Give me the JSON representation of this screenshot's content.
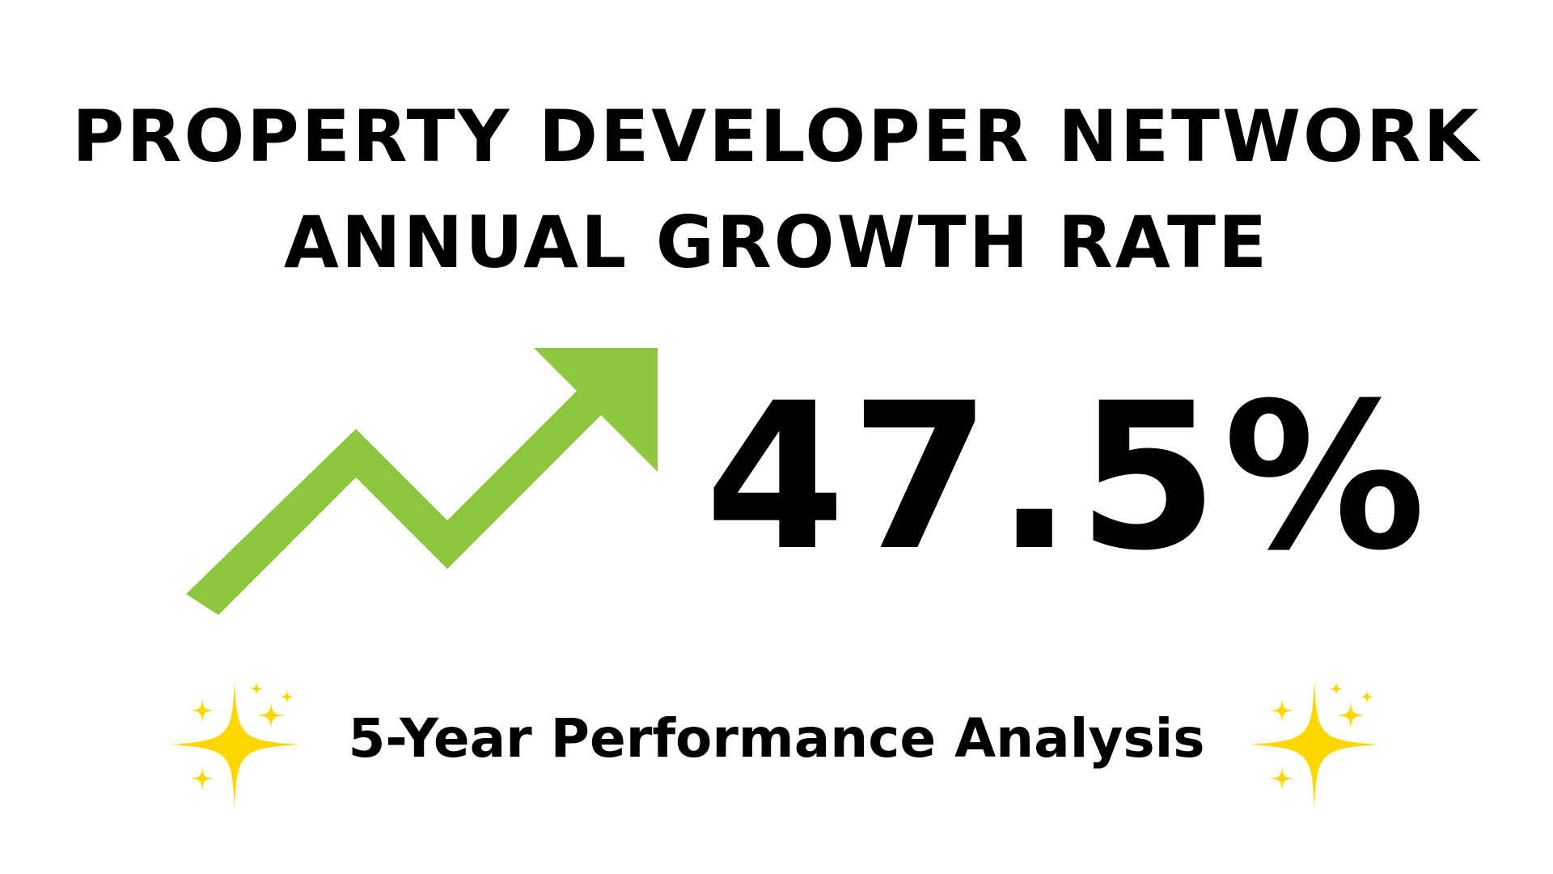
{
  "title": {
    "line1": "PROPERTY DEVELOPER NETWORK",
    "line2": "ANNUAL GROWTH RATE"
  },
  "metric": {
    "value": "47.5%"
  },
  "subtitle": "5-Year Performance Analysis",
  "icons": {
    "arrow": "trending-up-arrow-icon",
    "sparkles": "sparkles-icon"
  },
  "colors": {
    "background": "#ffffff",
    "text": "#000000",
    "arrow": "#8dc63f",
    "sparkle": "#ffd700"
  }
}
